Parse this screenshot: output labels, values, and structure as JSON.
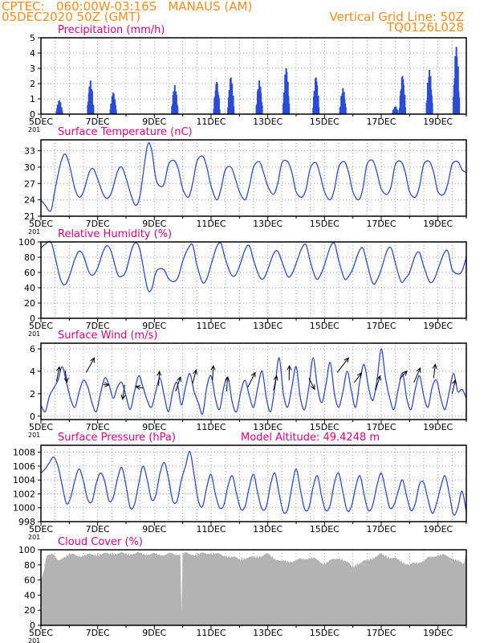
{
  "header": {
    "left_line1": "CPTEC:   060:00W-03:16S   MANAUS (AM)",
    "left_line2": "05DEC2020 50Z (GMT)",
    "right_line1": "Vertical Grid Line: 50Z",
    "right_line2": "TQ0126L028"
  },
  "colors": {
    "header": "#ff8c1a",
    "title": "#e8007a",
    "series": "#2a4bd7",
    "cloud": "#b3b3b3",
    "grid": "#9a9a9a",
    "wind_arrow": "#000000"
  },
  "x_axis": {
    "start": "2020-12-05",
    "end": "2020-12-20",
    "tick_labels": [
      "5DEC",
      "7DEC",
      "9DEC",
      "11DEC",
      "13DEC",
      "15DEC",
      "17DEC",
      "19DEC"
    ],
    "year_fragment": "201"
  },
  "chart_data": [
    {
      "type": "bar",
      "title": "Precipitation  (mm/h)",
      "unit": "mm/h",
      "ylim": [
        0,
        5
      ],
      "yticks": [
        0,
        1,
        2,
        3,
        4,
        5
      ],
      "grid": true,
      "events": [
        {
          "day": 0.65,
          "peak": 0.9
        },
        {
          "day": 1.75,
          "peak": 2.2
        },
        {
          "day": 2.55,
          "peak": 1.4
        },
        {
          "day": 4.72,
          "peak": 1.9
        },
        {
          "day": 6.2,
          "peak": 2.1
        },
        {
          "day": 6.7,
          "peak": 2.4
        },
        {
          "day": 7.7,
          "peak": 2.2
        },
        {
          "day": 8.65,
          "peak": 3.0
        },
        {
          "day": 9.7,
          "peak": 2.4
        },
        {
          "day": 10.65,
          "peak": 1.7
        },
        {
          "day": 12.5,
          "peak": 0.5
        },
        {
          "day": 12.75,
          "peak": 2.5
        },
        {
          "day": 13.7,
          "peak": 2.9
        },
        {
          "day": 14.65,
          "peak": 4.4
        }
      ]
    },
    {
      "type": "line",
      "title": "Surface Temperature (nC)",
      "unit": "nC",
      "ylim": [
        21,
        35
      ],
      "yticks": [
        21,
        24,
        27,
        30,
        33
      ],
      "grid": true,
      "x": [
        0,
        0.15,
        0.35,
        0.5,
        0.7,
        0.85,
        1.0,
        1.2,
        1.35,
        1.5,
        1.7,
        1.85,
        2.0,
        2.2,
        2.35,
        2.5,
        2.7,
        2.85,
        3.0,
        3.2,
        3.35,
        3.5,
        3.75,
        3.9,
        4.05,
        4.2,
        4.35,
        4.5,
        4.7,
        4.85,
        5.0,
        5.2,
        5.35,
        5.5,
        5.7,
        5.85,
        6.0,
        6.2,
        6.35,
        6.5,
        6.7,
        6.85,
        7.0,
        7.2,
        7.35,
        7.5,
        7.7,
        7.85,
        8.0,
        8.2,
        8.35,
        8.5,
        8.7,
        8.85,
        9.0,
        9.2,
        9.35,
        9.5,
        9.7,
        9.85,
        10.0,
        10.2,
        10.35,
        10.5,
        10.7,
        10.85,
        11.0,
        11.2,
        11.35,
        11.5,
        11.7,
        11.85,
        12.0,
        12.2,
        12.35,
        12.5,
        12.7,
        12.85,
        13.0,
        13.2,
        13.35,
        13.5,
        13.7,
        13.85,
        14.0,
        14.2,
        14.35,
        14.5,
        14.7,
        14.85,
        15.0
      ],
      "values": [
        24.0,
        23.0,
        22.0,
        26.0,
        30.8,
        32.4,
        30.5,
        26.0,
        24.5,
        25.5,
        29.0,
        29.7,
        27.8,
        25.0,
        24.3,
        25.5,
        29.2,
        30.0,
        28.0,
        24.5,
        23.0,
        25.0,
        33.8,
        33.2,
        28.0,
        26.5,
        27.0,
        30.5,
        31.2,
        29.5,
        26.0,
        24.5,
        27.0,
        31.0,
        32.0,
        30.0,
        26.5,
        24.0,
        26.0,
        29.5,
        30.0,
        28.0,
        25.5,
        24.0,
        26.5,
        30.0,
        31.0,
        29.0,
        26.5,
        25.0,
        27.0,
        30.8,
        31.0,
        29.0,
        25.5,
        24.5,
        26.0,
        29.8,
        30.8,
        28.5,
        25.5,
        24.0,
        26.0,
        30.0,
        31.0,
        29.0,
        25.5,
        24.0,
        26.0,
        30.5,
        31.2,
        29.0,
        26.0,
        25.0,
        26.5,
        30.5,
        31.0,
        29.0,
        25.5,
        24.5,
        26.5,
        30.5,
        31.0,
        29.0,
        25.5,
        25.0,
        27.0,
        30.5,
        31.0,
        29.5,
        29.0
      ]
    },
    {
      "type": "line",
      "title": "Relative Humidity  (%)",
      "unit": "%",
      "ylim": [
        0,
        100
      ],
      "yticks": [
        0,
        20,
        40,
        60,
        80,
        100
      ],
      "grid": true,
      "x": [
        0,
        0.15,
        0.35,
        0.5,
        0.7,
        0.85,
        1.0,
        1.2,
        1.35,
        1.5,
        1.7,
        1.85,
        2.0,
        2.2,
        2.35,
        2.5,
        2.7,
        2.85,
        3.0,
        3.2,
        3.35,
        3.5,
        3.75,
        3.9,
        4.05,
        4.2,
        4.35,
        4.5,
        4.7,
        4.85,
        5.0,
        5.2,
        5.35,
        5.5,
        5.7,
        5.85,
        6.0,
        6.2,
        6.35,
        6.5,
        6.7,
        6.85,
        7.0,
        7.2,
        7.35,
        7.5,
        7.7,
        7.85,
        8.0,
        8.2,
        8.35,
        8.5,
        8.7,
        8.85,
        9.0,
        9.2,
        9.35,
        9.5,
        9.7,
        9.85,
        10.0,
        10.2,
        10.35,
        10.5,
        10.7,
        10.85,
        11.0,
        11.2,
        11.35,
        11.5,
        11.7,
        11.85,
        12.0,
        12.2,
        12.35,
        12.5,
        12.7,
        12.85,
        13.0,
        13.2,
        13.35,
        13.5,
        13.7,
        13.85,
        14.0,
        14.2,
        14.35,
        14.5,
        14.7,
        14.85,
        15.0
      ],
      "values": [
        92,
        97,
        100,
        80,
        50,
        44,
        55,
        78,
        88,
        82,
        60,
        57,
        66,
        88,
        95,
        85,
        58,
        55,
        62,
        90,
        99,
        88,
        40,
        38,
        60,
        65,
        63,
        52,
        48,
        55,
        75,
        92,
        96,
        70,
        47,
        52,
        70,
        94,
        98,
        78,
        58,
        56,
        68,
        90,
        95,
        76,
        55,
        52,
        64,
        84,
        88,
        74,
        55,
        58,
        72,
        92,
        96,
        74,
        52,
        56,
        70,
        93,
        98,
        76,
        52,
        55,
        65,
        86,
        92,
        72,
        46,
        50,
        64,
        88,
        92,
        72,
        48,
        52,
        60,
        82,
        86,
        68,
        48,
        50,
        64,
        84,
        88,
        64,
        58,
        62,
        80
      ]
    },
    {
      "type": "line",
      "title": "Surface Wind  (m/s)",
      "unit": "m/s",
      "ylim": [
        -0.3,
        6.5
      ],
      "yticks": [
        0,
        2,
        4,
        6
      ],
      "grid": true,
      "x": [
        0,
        0.15,
        0.3,
        0.45,
        0.6,
        0.75,
        0.9,
        1.05,
        1.2,
        1.35,
        1.5,
        1.65,
        1.8,
        1.95,
        2.1,
        2.25,
        2.4,
        2.55,
        2.7,
        2.85,
        3.0,
        3.15,
        3.3,
        3.45,
        3.6,
        3.75,
        3.9,
        4.05,
        4.2,
        4.35,
        4.5,
        4.65,
        4.8,
        4.95,
        5.1,
        5.25,
        5.4,
        5.55,
        5.7,
        5.85,
        6.0,
        6.15,
        6.3,
        6.45,
        6.6,
        6.75,
        6.9,
        7.05,
        7.2,
        7.35,
        7.5,
        7.65,
        7.8,
        7.95,
        8.1,
        8.25,
        8.4,
        8.55,
        8.7,
        8.85,
        9.0,
        9.15,
        9.3,
        9.45,
        9.6,
        9.75,
        9.9,
        10.05,
        10.2,
        10.35,
        10.5,
        10.65,
        10.8,
        10.95,
        11.1,
        11.25,
        11.4,
        11.55,
        11.7,
        11.85,
        12.0,
        12.15,
        12.3,
        12.45,
        12.6,
        12.75,
        12.9,
        13.05,
        13.2,
        13.35,
        13.5,
        13.65,
        13.8,
        13.95,
        14.1,
        14.25,
        14.4,
        14.55,
        14.7,
        14.85,
        15.0
      ],
      "values": [
        1.0,
        0.4,
        1.8,
        2.5,
        3.2,
        4.4,
        3.0,
        1.5,
        0.8,
        2.2,
        3.2,
        2.6,
        1.2,
        0.4,
        2.0,
        3.4,
        2.8,
        1.6,
        2.6,
        3.0,
        1.8,
        0.6,
        2.2,
        3.6,
        2.6,
        1.4,
        0.8,
        2.2,
        3.4,
        1.8,
        0.4,
        2.2,
        3.0,
        1.0,
        2.6,
        3.8,
        2.2,
        1.2,
        0.2,
        2.6,
        3.6,
        1.6,
        0.6,
        2.6,
        3.4,
        1.2,
        0.4,
        2.2,
        3.2,
        1.8,
        0.8,
        2.6,
        4.0,
        1.6,
        0.4,
        2.6,
        5.2,
        2.0,
        0.8,
        2.6,
        4.4,
        1.6,
        0.6,
        2.6,
        5.2,
        2.6,
        1.2,
        2.8,
        4.8,
        2.0,
        0.8,
        2.2,
        4.0,
        2.2,
        0.8,
        3.2,
        4.6,
        2.6,
        1.4,
        3.2,
        6.0,
        3.4,
        1.6,
        0.6,
        2.4,
        3.8,
        1.6,
        0.6,
        2.4,
        3.6,
        1.8,
        0.8,
        2.6,
        3.2,
        1.6,
        0.6,
        2.2,
        3.8,
        2.2,
        2.4,
        1.6
      ],
      "vectors": [
        {
          "day": 0.55,
          "y": 3.1,
          "dx": 0.18,
          "dy": 0.9
        },
        {
          "day": 0.85,
          "y": 4.1,
          "dx": 0.12,
          "dy": -0.75
        },
        {
          "day": 1.6,
          "y": 3.9,
          "dx": 0.5,
          "dy": 0.9
        },
        {
          "day": 2.2,
          "y": 2.8,
          "dx": 0.35,
          "dy": 0.0
        },
        {
          "day": 2.95,
          "y": 2.8,
          "dx": -0.12,
          "dy": -0.9
        },
        {
          "day": 3.6,
          "y": 2.5,
          "dx": -0.45,
          "dy": 0.1
        },
        {
          "day": 4.15,
          "y": 2.7,
          "dx": 0.05,
          "dy": 0.9
        },
        {
          "day": 4.75,
          "y": 2.2,
          "dx": 0.3,
          "dy": 0.9
        },
        {
          "day": 5.35,
          "y": 2.9,
          "dx": 0.22,
          "dy": 0.85
        },
        {
          "day": 6.05,
          "y": 3.2,
          "dx": 0.05,
          "dy": 0.9
        },
        {
          "day": 6.55,
          "y": 2.2,
          "dx": 0.05,
          "dy": 0.9
        },
        {
          "day": 7.3,
          "y": 2.6,
          "dx": 0.45,
          "dy": 0.9
        },
        {
          "day": 8.2,
          "y": 2.3,
          "dx": 0.2,
          "dy": 0.9
        },
        {
          "day": 8.75,
          "y": 3.2,
          "dx": 0.02,
          "dy": 0.9
        },
        {
          "day": 9.45,
          "y": 3.4,
          "dx": 0.35,
          "dy": -0.7
        },
        {
          "day": 10.45,
          "y": 3.9,
          "dx": 0.7,
          "dy": 0.9
        },
        {
          "day": 11.05,
          "y": 3.0,
          "dx": 0.45,
          "dy": 0.6
        },
        {
          "day": 11.8,
          "y": 2.3,
          "dx": 0.28,
          "dy": 0.9
        },
        {
          "day": 12.65,
          "y": 3.3,
          "dx": 0.45,
          "dy": 0.5
        },
        {
          "day": 13.15,
          "y": 3.0,
          "dx": 0.4,
          "dy": 0.9
        },
        {
          "day": 13.85,
          "y": 3.4,
          "dx": 0.1,
          "dy": 0.85
        },
        {
          "day": 14.5,
          "y": 2.0,
          "dx": 0.2,
          "dy": 0.85
        }
      ]
    },
    {
      "type": "line",
      "title": "Surface Pressure (hPa)",
      "extra_label": "Model Altitude: 49.4248  m",
      "unit": "hPa",
      "ylim": [
        998,
        1009
      ],
      "yticks": [
        998,
        1000,
        1002,
        1004,
        1006,
        1008
      ],
      "grid": true,
      "x": [
        0,
        0.15,
        0.3,
        0.45,
        0.6,
        0.75,
        0.9,
        1.05,
        1.2,
        1.35,
        1.5,
        1.65,
        1.8,
        1.95,
        2.1,
        2.25,
        2.4,
        2.55,
        2.7,
        2.85,
        3.0,
        3.15,
        3.3,
        3.45,
        3.6,
        3.75,
        3.9,
        4.05,
        4.2,
        4.35,
        4.5,
        4.65,
        4.8,
        4.95,
        5.1,
        5.25,
        5.4,
        5.55,
        5.7,
        5.85,
        6.0,
        6.15,
        6.3,
        6.45,
        6.6,
        6.75,
        6.9,
        7.05,
        7.2,
        7.35,
        7.5,
        7.65,
        7.8,
        7.95,
        8.1,
        8.25,
        8.4,
        8.55,
        8.7,
        8.85,
        9.0,
        9.15,
        9.3,
        9.45,
        9.6,
        9.75,
        9.9,
        10.05,
        10.2,
        10.35,
        10.5,
        10.65,
        10.8,
        10.95,
        11.1,
        11.25,
        11.4,
        11.55,
        11.7,
        11.85,
        12.0,
        12.15,
        12.3,
        12.45,
        12.6,
        12.75,
        12.9,
        13.05,
        13.2,
        13.35,
        13.5,
        13.65,
        13.8,
        13.95,
        14.1,
        14.25,
        14.4,
        14.55,
        14.7,
        14.85,
        15.0
      ],
      "values": [
        1005.0,
        1005.6,
        1006.5,
        1007.3,
        1006.0,
        1003.2,
        1000.6,
        1001.5,
        1004.0,
        1005.6,
        1003.8,
        1001.2,
        1000.9,
        1003.5,
        1005.0,
        1003.8,
        1001.0,
        1001.5,
        1004.2,
        1005.8,
        1003.2,
        1000.0,
        1000.5,
        1003.5,
        1006.0,
        1004.0,
        1001.2,
        1001.8,
        1005.0,
        1006.5,
        1004.2,
        1001.0,
        1001.0,
        1004.0,
        1006.0,
        1008.1,
        1004.8,
        1001.0,
        1000.2,
        1003.0,
        1004.8,
        1002.0,
        1000.0,
        1000.4,
        1003.2,
        1004.6,
        1002.0,
        999.8,
        1000.2,
        1003.0,
        1004.8,
        1002.0,
        999.8,
        1000.2,
        1003.4,
        1005.0,
        1002.0,
        999.4,
        999.8,
        1003.0,
        1005.6,
        1002.6,
        999.8,
        1000.0,
        1003.0,
        1004.6,
        1001.6,
        999.6,
        1000.4,
        1003.6,
        1005.0,
        1002.2,
        999.6,
        1000.2,
        1003.0,
        1004.6,
        1001.8,
        999.6,
        1000.4,
        1003.2,
        1005.0,
        1002.6,
        1000.0,
        1000.4,
        1002.4,
        1004.0,
        1001.6,
        999.6,
        1000.6,
        1003.4,
        1003.6,
        1001.2,
        999.2,
        1000.6,
        1003.0,
        1004.6,
        1002.0,
        999.0,
        1000.0,
        1002.4,
        999.4
      ]
    },
    {
      "type": "area",
      "title": "Cloud Cover  (%)",
      "unit": "%",
      "ylim": [
        0,
        100
      ],
      "yticks": [
        0,
        20,
        40,
        60,
        80,
        100
      ],
      "grid": true,
      "x": [
        0,
        0.1,
        0.2,
        0.4,
        0.6,
        0.8,
        1.0,
        1.3,
        1.6,
        2.0,
        2.5,
        3.0,
        3.5,
        4.0,
        4.5,
        4.95,
        4.96,
        5.0,
        5.5,
        6.0,
        6.5,
        7.0,
        7.5,
        8.0,
        8.5,
        9.0,
        9.5,
        10.0,
        10.5,
        11.0,
        11.5,
        12.0,
        12.5,
        13.0,
        13.5,
        14.0,
        14.5,
        14.9,
        15.0
      ],
      "values": [
        60,
        72,
        96,
        98,
        86,
        93,
        96,
        94,
        95,
        96,
        97,
        97,
        97,
        96,
        96,
        97,
        5,
        97,
        96,
        98,
        94,
        90,
        92,
        96,
        86,
        88,
        92,
        84,
        92,
        80,
        88,
        96,
        90,
        82,
        88,
        96,
        92,
        82,
        98
      ]
    }
  ]
}
